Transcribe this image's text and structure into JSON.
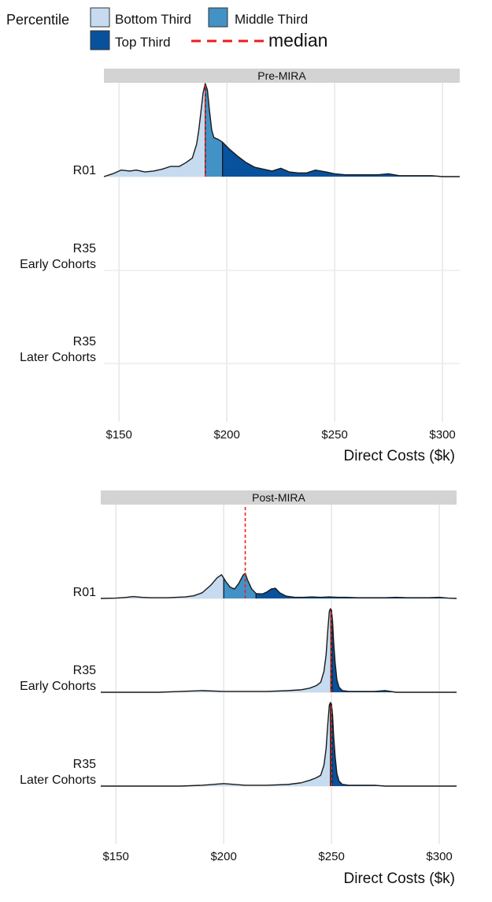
{
  "chart_data": {
    "type": "ridgeline",
    "legend": {
      "title": "Percentile",
      "position": "top",
      "fills": [
        {
          "label": "Bottom Third",
          "color": "#c6dbef"
        },
        {
          "label": "Middle Third",
          "color": "#4292c6"
        },
        {
          "label": "Top Third",
          "color": "#08519c"
        }
      ],
      "median": {
        "label": "median",
        "color": "#ee1c1c"
      }
    },
    "xlabel": "Direct Costs ($k)",
    "xlim": [
      143,
      308
    ],
    "xticks": [
      150,
      200,
      250,
      300
    ],
    "xtick_labels": [
      "$150",
      "$200",
      "$250",
      "$300"
    ],
    "categories": [
      {
        "line1": "",
        "line2": "R01"
      },
      {
        "line1": "R35",
        "line2": "Early Cohorts"
      },
      {
        "line1": "R35",
        "line2": "Later Cohorts"
      }
    ],
    "grid": true,
    "panels": [
      {
        "strip": "Pre-MIRA",
        "ridges": [
          {
            "category": "R01",
            "tertiles": [
              190,
              198
            ],
            "median": 190,
            "density_x": [
              143,
              147,
              151,
              155,
              158,
              162,
              166,
              170,
              174,
              178,
              181,
              184,
              186,
              187,
              188,
              189,
              190,
              191,
              192,
              193,
              194,
              196,
              198,
              201,
              205,
              209,
              213,
              217,
              221,
              225,
              229,
              233,
              237,
              241,
              246,
              250,
              255,
              260,
              265,
              270,
              275,
              280,
              285,
              290,
              295,
              300,
              304,
              308
            ],
            "density_y": [
              0,
              0.03,
              0.07,
              0.06,
              0.07,
              0.05,
              0.06,
              0.08,
              0.11,
              0.11,
              0.15,
              0.2,
              0.35,
              0.5,
              0.7,
              0.9,
              1.0,
              0.93,
              0.7,
              0.5,
              0.42,
              0.4,
              0.37,
              0.3,
              0.22,
              0.15,
              0.1,
              0.08,
              0.06,
              0.09,
              0.05,
              0.04,
              0.04,
              0.07,
              0.05,
              0.03,
              0.02,
              0.02,
              0.02,
              0.02,
              0.03,
              0.01,
              0.01,
              0.01,
              0.01,
              0.0,
              0.0,
              0.0
            ]
          }
        ]
      },
      {
        "strip": "Post-MIRA",
        "ridges": [
          {
            "category": "R01",
            "tertiles": [
              200,
              215
            ],
            "median": 210,
            "density_x": [
              143,
              150,
              155,
              158,
              162,
              166,
              170,
              174,
              178,
              182,
              186,
              190,
              194,
              197,
              199,
              201,
              203,
              205,
              207,
              209,
              210,
              211,
              213,
              215,
              218,
              220,
              222,
              224,
              226,
              229,
              233,
              237,
              241,
              245,
              249,
              253,
              257,
              262,
              266,
              270,
              275,
              280,
              285,
              290,
              295,
              300,
              304,
              308
            ],
            "density_y": [
              0,
              0.01,
              0.03,
              0.05,
              0.03,
              0.02,
              0.02,
              0.02,
              0.03,
              0.04,
              0.07,
              0.15,
              0.35,
              0.55,
              0.63,
              0.45,
              0.3,
              0.25,
              0.4,
              0.62,
              0.67,
              0.5,
              0.25,
              0.13,
              0.12,
              0.17,
              0.25,
              0.27,
              0.15,
              0.06,
              0.03,
              0.03,
              0.04,
              0.03,
              0.04,
              0.03,
              0.03,
              0.02,
              0.02,
              0.02,
              0.02,
              0.03,
              0.02,
              0.02,
              0.02,
              0.03,
              0.01,
              0.0
            ]
          },
          {
            "category": "R35 Early Cohorts",
            "tertiles": [
              249.7,
              250.3
            ],
            "median": 250,
            "density_x": [
              143,
              150,
              160,
              170,
              180,
              190,
              200,
              210,
              220,
              230,
              236,
              240,
              243,
              245,
              246.5,
              247.5,
              248.3,
              249,
              249.5,
              250,
              250.5,
              251,
              251.7,
              252.5,
              253.5,
              255,
              258,
              262,
              270,
              275,
              280,
              290,
              300,
              308
            ],
            "density_y": [
              0,
              0.0,
              0.0,
              0.0,
              0.01,
              0.02,
              0.01,
              0.01,
              0.01,
              0.02,
              0.03,
              0.05,
              0.08,
              0.12,
              0.25,
              0.45,
              0.75,
              0.97,
              1.0,
              0.98,
              0.85,
              0.6,
              0.35,
              0.15,
              0.06,
              0.02,
              0.01,
              0.01,
              0.01,
              0.02,
              0.0,
              0.0,
              0.0,
              0.0
            ]
          },
          {
            "category": "R35 Later Cohorts",
            "tertiles": [
              249.5,
              250.2
            ],
            "median": 250,
            "density_x": [
              143,
              150,
              160,
              170,
              180,
              190,
              200,
              210,
              220,
              230,
              236,
              240,
              243,
              245,
              246.5,
              247.5,
              248.3,
              249,
              249.5,
              250,
              250.5,
              251,
              251.7,
              252.5,
              253.5,
              255,
              258,
              262,
              270,
              275,
              280,
              290,
              300,
              308
            ],
            "density_y": [
              0,
              0.0,
              0.0,
              0.0,
              0.0,
              0.01,
              0.03,
              0.01,
              0.01,
              0.02,
              0.04,
              0.07,
              0.1,
              0.13,
              0.25,
              0.45,
              0.75,
              0.97,
              1.0,
              0.98,
              0.85,
              0.6,
              0.35,
              0.15,
              0.06,
              0.02,
              0.01,
              0.01,
              0.01,
              0.0,
              0.0,
              0.0,
              0.0,
              0.0
            ]
          }
        ]
      }
    ]
  }
}
